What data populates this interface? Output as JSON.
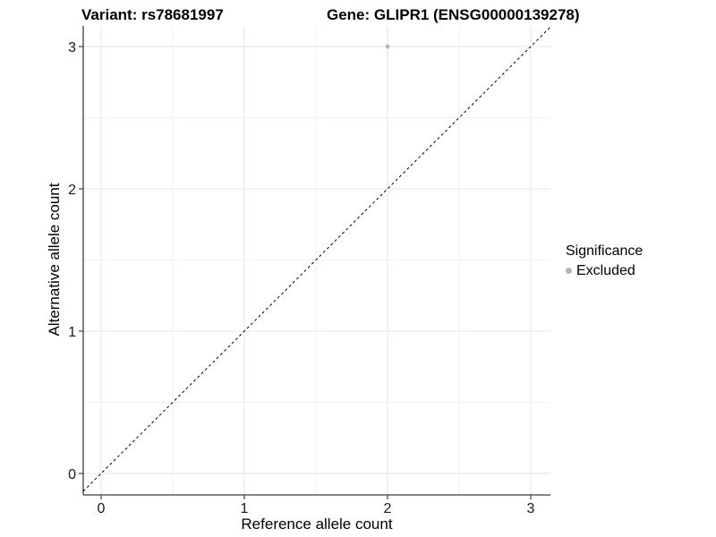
{
  "title": {
    "variant": "Variant: rs78681997",
    "gene": "Gene: GLIPR1 (ENSG00000139278)"
  },
  "axes": {
    "x_label": "Reference allele count",
    "y_label": "Alternative allele count"
  },
  "legend": {
    "title": "Significance",
    "items": [
      {
        "label": "Excluded",
        "color": "#b4b4b4"
      }
    ]
  },
  "style": {
    "grid_major": "#e6e6e6",
    "grid_minor": "#f2f2f2",
    "axis_line": "#3c3c3c",
    "tick_mark": "#3c3c3c",
    "tick_label": "#1a1a1a",
    "reference_line": "#000000",
    "point": "#b4b4b4"
  },
  "chart_data": {
    "type": "scatter",
    "title": "Variant: rs78681997 / Gene: GLIPR1 (ENSG00000139278)",
    "xlabel": "Reference allele count",
    "ylabel": "Alternative allele count",
    "xlim": [
      -0.13,
      3.14
    ],
    "ylim": [
      -0.15,
      3.15
    ],
    "x_ticks": [
      0,
      1,
      2,
      3
    ],
    "y_ticks": [
      0,
      1,
      2,
      3
    ],
    "grid": true,
    "minor_grid": true,
    "legend_position": "right",
    "legend_title": "Significance",
    "series": [
      {
        "name": "Excluded",
        "color": "#b4b4b4",
        "points": [
          {
            "x": 2,
            "y": 3
          }
        ]
      }
    ],
    "reference_line": {
      "kind": "identity",
      "slope": 1,
      "intercept": 0,
      "style": "dashed",
      "color": "#000000"
    }
  }
}
